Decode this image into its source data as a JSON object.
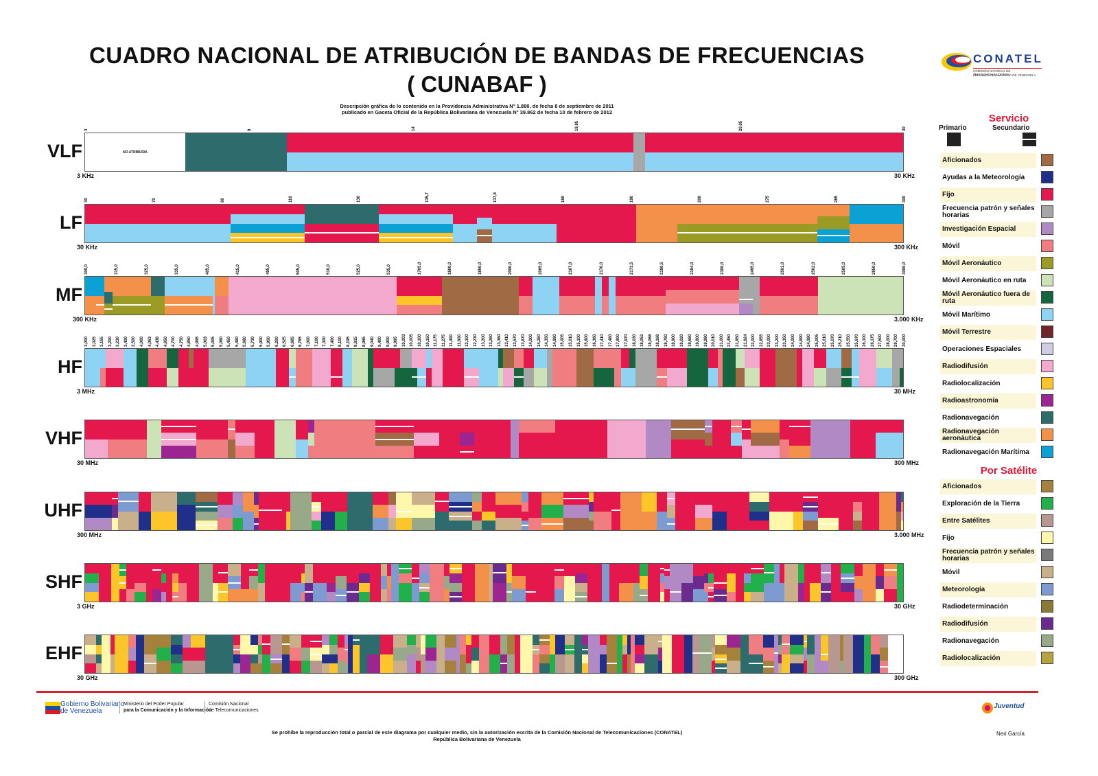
{
  "header": {
    "title_line1": "CUADRO NACIONAL DE ATRIBUCIÓN DE BANDAS DE FRECUENCIAS",
    "title_line2": "( CUNABAF )",
    "desc_line1": "Descripción gráfica de lo contenido en la Providencia Administrativa N° 1.880, de fecha 8 de septiembre de 2011",
    "desc_line2": "publicado en Gaceta Oficial de la República Bolivariana de Venezuela N° 39.862 de fecha 10 de febrero de 2012"
  },
  "logo": {
    "name": "CONATEL",
    "sub1": "COMISIÓN NACIONAL DE TELECOMUNICACIONES",
    "sub2": "REPÚBLICA BOLIVARIANA DE VENEZUELA"
  },
  "colors": {
    "aficionados": "#a06a45",
    "meteorologia": "#1f2f8a",
    "fijo": "#e5184e",
    "frecuencia": "#a7a7a7",
    "investigacion": "#b189c4",
    "movil": "#f07e80",
    "movil_aero": "#9a9a25",
    "movil_aero_ruta": "#cbe3b7",
    "movil_aero_fuera": "#15653e",
    "movil_maritimo": "#8fd3f4",
    "movil_terrestre": "#6e2727",
    "operaciones": "#cfcbe5",
    "radiodifusion": "#f3a9cd",
    "radiolocalizacion": "#fcc52a",
    "radioastronomia": "#9b2591",
    "radionav": "#2d6b6d",
    "radionav_aero": "#f3904a",
    "radionav_mar": "#0ba1d4",
    "sat_aficionados": "#a6813c",
    "sat_exploracion": "#22b04b",
    "sat_entre": "#b89790",
    "sat_fijo": "#fff8ab",
    "sat_frecuencia": "#7a7a7a",
    "sat_movil": "#c9b08b",
    "sat_meteorologia": "#7d9bd0",
    "sat_radiodeterminacion": "#8b7a36",
    "sat_radiodifusion": "#6b2b8e",
    "sat_radionav": "#98a98a",
    "sat_radiolocalizacion": "#b5a340"
  },
  "bands": {
    "vlf": {
      "name": "VLF",
      "start": "3 KHz",
      "end": "30 KHz",
      "ticks": [
        "3",
        "9",
        "14",
        "19,95",
        "20,05",
        "30"
      ],
      "no_atribuida": "NO ATRIBUIDA"
    },
    "lf": {
      "name": "LF",
      "start": "30 KHz",
      "end": "300 KHz",
      "ticks": [
        "30",
        "70",
        "90",
        "110",
        "130",
        "135,7",
        "137,8",
        "160",
        "190",
        "200",
        "275",
        "285",
        "300"
      ]
    },
    "mf": {
      "name": "MF",
      "start": "300 KHz",
      "end": "3.000 KHz",
      "ticks": [
        "300,0",
        "315,0",
        "325,0",
        "335,0",
        "405,0",
        "415,0",
        "495,0",
        "505,0",
        "510,0",
        "525,0",
        "535,0",
        "1705,0",
        "1800,0",
        "1850,0",
        "2000,0",
        "2065,0",
        "2107,0",
        "2170,0",
        "2173,5",
        "2190,5",
        "2194,0",
        "2300,0",
        "2495,0",
        "2501,0",
        "2502,0",
        "2505,0",
        "2850,0",
        "3000,0"
      ]
    },
    "hf": {
      "name": "HF",
      "start": "3 MHz",
      "end": "30 MHz",
      "ticks": [
        "3,000",
        "3,025",
        "3,155",
        "3,200",
        "3,230",
        "3,400",
        "3,500",
        "4,000",
        "4,063",
        "4,438",
        "4,650",
        "4,700",
        "4,750",
        "4,850",
        "4,995",
        "5,003",
        "5,005",
        "5,060",
        "5,450",
        "5,480",
        "5,680",
        "5,730",
        "5,900",
        "5,950",
        "6,200",
        "6,525",
        "6,685",
        "6,765",
        "7,000",
        "7,100",
        "7,300",
        "7,400",
        "8,100",
        "8,195",
        "8,815",
        "8,965",
        "9,040",
        "9,400",
        "9,900",
        "9,995",
        "10,003",
        "10,005",
        "10,100",
        "10,150",
        "11,175",
        "11,275",
        "11,400",
        "11,600",
        "12,100",
        "12,230",
        "13,200",
        "13,260",
        "13,360",
        "13,410",
        "13,570",
        "13,870",
        "14,000",
        "14,250",
        "14,350",
        "14,990",
        "15,005",
        "15,010",
        "15,100",
        "15,800",
        "16,360",
        "17,410",
        "17,480",
        "17,900",
        "17,970",
        "18,030",
        "18,052",
        "18,068",
        "18,168",
        "18,780",
        "18,900",
        "19,020",
        "19,680",
        "19,800",
        "19,990",
        "20,010",
        "21,000",
        "21,450",
        "21,850",
        "21,924",
        "22,000",
        "22,855",
        "23,000",
        "23,200",
        "23,350",
        "24,000",
        "24,890",
        "24,990",
        "25,005",
        "25,010",
        "25,070",
        "25,210",
        "25,550",
        "25,670",
        "26,100",
        "26,175",
        "27,500",
        "28,000",
        "29,700",
        "30,000"
      ]
    },
    "vhf": {
      "name": "VHF",
      "start": "30 MHz",
      "end": "300 MHz"
    },
    "uhf": {
      "name": "UHF",
      "start": "300 MHz",
      "end": "3.000 MHz"
    },
    "shf": {
      "name": "SHF",
      "start": "3 GHz",
      "end": "30 GHz"
    },
    "ehf": {
      "name": "EHF",
      "start": "30 GHz",
      "end": "300 GHz"
    }
  },
  "legend": {
    "servicio_title": "Servicio",
    "primario": "Primario",
    "secundario": "Secundario",
    "servicio": [
      {
        "label": "Aficionados",
        "color": "#a06a45"
      },
      {
        "label": "Ayudas a la Meteorología",
        "color": "#1f2f8a"
      },
      {
        "label": "Fijo",
        "color": "#e5184e"
      },
      {
        "label": "Frecuencia patrón y señales horarias",
        "color": "#a7a7a7"
      },
      {
        "label": "Investigación Espacial",
        "color": "#b189c4"
      },
      {
        "label": "Móvil",
        "color": "#f07e80"
      },
      {
        "label": "Móvil Aeronáutico",
        "color": "#9a9a25"
      },
      {
        "label": "Móvil Aeronáutico en ruta",
        "color": "#cbe3b7"
      },
      {
        "label": "Móvil Aeronáutico fuera de ruta",
        "color": "#15653e"
      },
      {
        "label": "Móvil Marítimo",
        "color": "#8fd3f4"
      },
      {
        "label": "Móvil Terrestre",
        "color": "#6e2727"
      },
      {
        "label": "Operaciones Espaciales",
        "color": "#cfcbe5"
      },
      {
        "label": "Radiodifusión",
        "color": "#f3a9cd"
      },
      {
        "label": "Radiolocalización",
        "color": "#fcc52a"
      },
      {
        "label": "Radioastronomía",
        "color": "#9b2591"
      },
      {
        "label": "Radionavegación",
        "color": "#2d6b6d"
      },
      {
        "label": "Radionavegación aeronáutica",
        "color": "#f3904a"
      },
      {
        "label": "Radionavegación Marítima",
        "color": "#0ba1d4"
      }
    ],
    "satelite_title": "Por Satélite",
    "satelite": [
      {
        "label": "Aficionados",
        "color": "#a6813c"
      },
      {
        "label": "Exploración de la Tierra",
        "color": "#22b04b"
      },
      {
        "label": "Entre Satélites",
        "color": "#b89790"
      },
      {
        "label": "Fijo",
        "color": "#fff8ab"
      },
      {
        "label": "Frecuencia patrón y señales horarias",
        "color": "#7a7a7a"
      },
      {
        "label": "Móvil",
        "color": "#c9b08b"
      },
      {
        "label": "Meteorología",
        "color": "#7d9bd0"
      },
      {
        "label": "Radiodeterminación",
        "color": "#8b7a36"
      },
      {
        "label": "Radiodifusión",
        "color": "#6b2b8e"
      },
      {
        "label": "Radionavegación",
        "color": "#98a98a"
      },
      {
        "label": "Radiolocalización",
        "color": "#b5a340"
      }
    ]
  },
  "footer": {
    "gob1": "Gobierno Bolivariano",
    "gob2": "de Venezuela",
    "min1": "Ministerio del Poder Popular",
    "min2": "para la Comunicación y la Información",
    "com1": "Comisión Nacional",
    "com2": "de Telecomunicaciones",
    "notice1": "Se prohibe la reproducción total o parcial de este diagrama por cualquier medio, sin la autorización escrita de la Comisión Nacional de Telecomunicaciones (CONATEL)",
    "notice2": "República Bolivariana de Venezuela",
    "author": "Neri García",
    "juventud": "Juventud"
  }
}
